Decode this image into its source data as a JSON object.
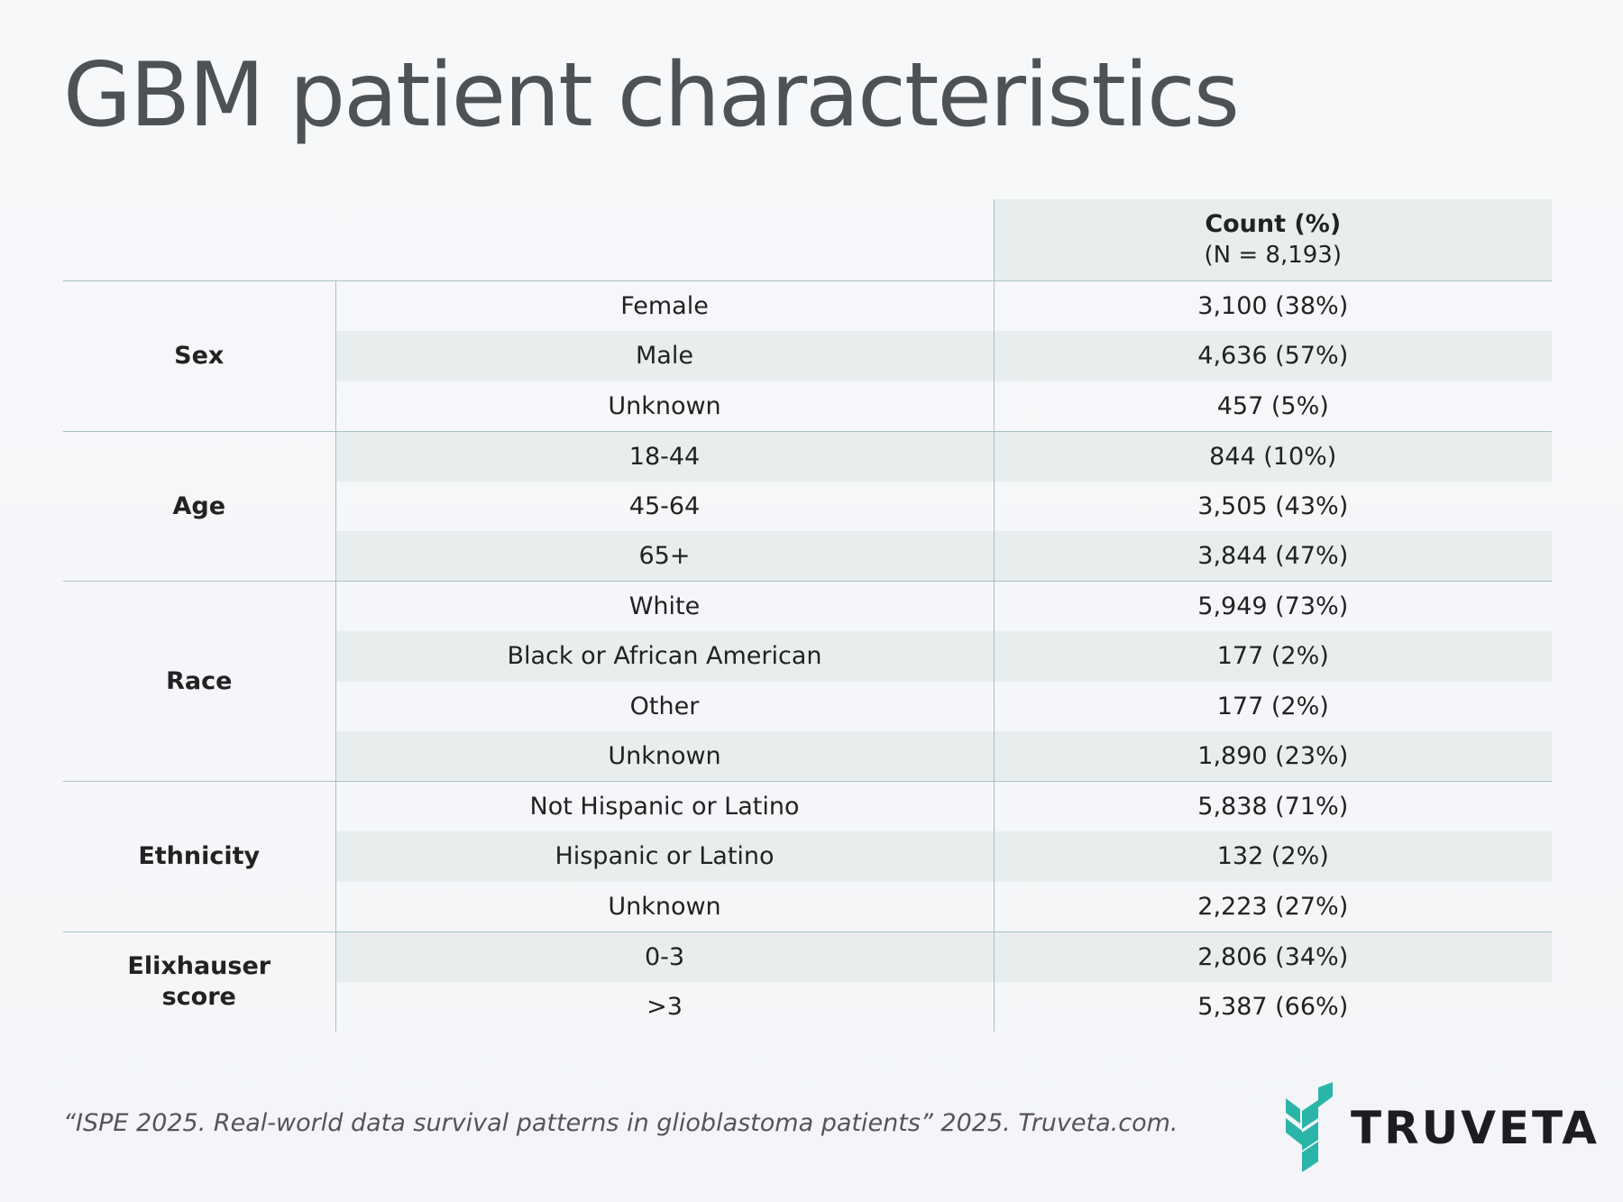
{
  "chart_data": {
    "type": "table",
    "title": "GBM patient characteristics",
    "columns": {
      "value_header": "Count (%)",
      "value_subheader": "(N = 8,193)"
    },
    "groups": [
      {
        "category": "Sex",
        "rows": [
          {
            "label": "Female",
            "value": "3,100 (38%)"
          },
          {
            "label": "Male",
            "value": "4,636 (57%)"
          },
          {
            "label": "Unknown",
            "value": "457 (5%)"
          }
        ]
      },
      {
        "category": "Age",
        "rows": [
          {
            "label": "18-44",
            "value": "844 (10%)"
          },
          {
            "label": "45-64",
            "value": "3,505 (43%)"
          },
          {
            "label": "65+",
            "value": "3,844 (47%)"
          }
        ]
      },
      {
        "category": "Race",
        "rows": [
          {
            "label": "White",
            "value": "5,949 (73%)"
          },
          {
            "label": "Black or African American",
            "value": "177 (2%)"
          },
          {
            "label": "Other",
            "value": "177 (2%)"
          },
          {
            "label": "Unknown",
            "value": "1,890 (23%)"
          }
        ]
      },
      {
        "category": "Ethnicity",
        "rows": [
          {
            "label": "Not Hispanic or Latino",
            "value": "5,838 (71%)"
          },
          {
            "label": "Hispanic or Latino",
            "value": "132 (2%)"
          },
          {
            "label": "Unknown",
            "value": "2,223 (27%)"
          }
        ]
      },
      {
        "category": "Elixhauser score",
        "rows": [
          {
            "label": "0-3",
            "value": "2,806 (34%)"
          },
          {
            "label": ">3",
            "value": "5,387 (66%)"
          }
        ]
      }
    ]
  },
  "footnote": "“ISPE 2025. Real-world data survival patterns in glioblastoma patients” 2025. Truveta.com.",
  "logo": {
    "text": "TRUVETA",
    "icon": "truveta-logo-icon",
    "color": "#2bb5a8"
  },
  "colors": {
    "shade": "#e8eeee",
    "rule": "#a9c1c0",
    "title": "#4f5255"
  }
}
